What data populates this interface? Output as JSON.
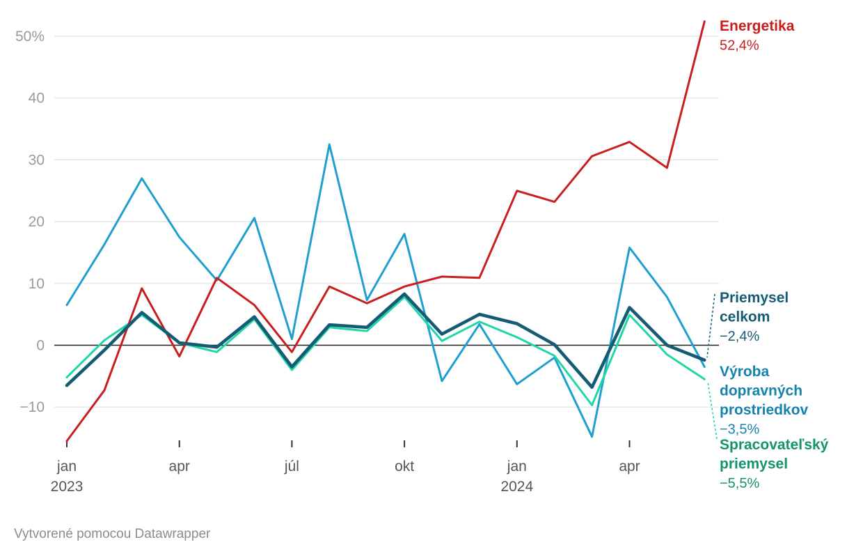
{
  "chart_data": {
    "type": "line",
    "title": "",
    "xlabel": "",
    "ylabel": "",
    "ylim": [
      -15,
      52.4
    ],
    "y_ticks": [
      {
        "value": 50,
        "label": "50%"
      },
      {
        "value": 40,
        "label": "40"
      },
      {
        "value": 30,
        "label": "30"
      },
      {
        "value": 20,
        "label": "20"
      },
      {
        "value": 10,
        "label": "10"
      },
      {
        "value": 0,
        "label": "0"
      },
      {
        "value": -10,
        "label": "−10"
      }
    ],
    "x": [
      "2023-01",
      "2023-02",
      "2023-03",
      "2023-04",
      "2023-05",
      "2023-06",
      "2023-07",
      "2023-08",
      "2023-09",
      "2023-10",
      "2023-11",
      "2023-12",
      "2024-01",
      "2024-02",
      "2024-03",
      "2024-04",
      "2024-05",
      "2024-06"
    ],
    "x_ticks": [
      {
        "index": 0,
        "label": "jan",
        "year": "2023"
      },
      {
        "index": 3,
        "label": "apr",
        "year": ""
      },
      {
        "index": 6,
        "label": "júl",
        "year": ""
      },
      {
        "index": 9,
        "label": "okt",
        "year": ""
      },
      {
        "index": 12,
        "label": "jan",
        "year": "2024"
      },
      {
        "index": 15,
        "label": "apr",
        "year": ""
      }
    ],
    "series": [
      {
        "name": "Výroba dopravných prostriedkov",
        "label_lines": [
          "Výroba",
          "dopravných",
          "prostriedkov"
        ],
        "final_label": "−3,5%",
        "color": "#1f9fcf",
        "label_color": "#1583ad",
        "values": [
          6.5,
          16.3,
          27.0,
          17.5,
          10.5,
          20.6,
          1.0,
          32.5,
          7.3,
          18.0,
          -5.8,
          3.4,
          -6.3,
          -2.0,
          -14.8,
          15.8,
          7.8,
          -3.5
        ]
      },
      {
        "name": "Spracovateľský priemysel",
        "label_lines": [
          "Spracovateľský",
          "priemysel"
        ],
        "final_label": "−5,5%",
        "color": "#1fd7a6",
        "label_color": "#14936f",
        "values": [
          -5.2,
          0.8,
          4.9,
          0.4,
          -1.1,
          4.2,
          -4.0,
          2.9,
          2.3,
          7.8,
          0.7,
          3.8,
          1.3,
          -1.7,
          -9.7,
          4.9,
          -1.5,
          -5.5
        ]
      },
      {
        "name": "Energetika",
        "label_lines": [
          "Energetika"
        ],
        "final_label": "52,4%",
        "color": "#c81e1e",
        "label_color": "#c81e1e",
        "values": [
          -15.5,
          -7.3,
          9.2,
          -1.8,
          10.9,
          6.5,
          -1.1,
          9.5,
          6.8,
          9.5,
          11.1,
          10.9,
          25.0,
          23.2,
          30.6,
          32.9,
          28.7,
          52.4
        ]
      },
      {
        "name": "Priemysel celkom",
        "label_lines": [
          "Priemysel",
          "celkom"
        ],
        "final_label": "−2,4%",
        "color": "#145c74",
        "label_color": "#145c74",
        "values": [
          -6.5,
          -0.8,
          5.3,
          0.4,
          -0.3,
          4.6,
          -3.5,
          3.3,
          2.9,
          8.3,
          1.8,
          5.0,
          3.5,
          0.1,
          -6.8,
          6.1,
          0.0,
          -2.4
        ]
      }
    ]
  },
  "credit": "Vytvorené pomocou Datawrapper"
}
